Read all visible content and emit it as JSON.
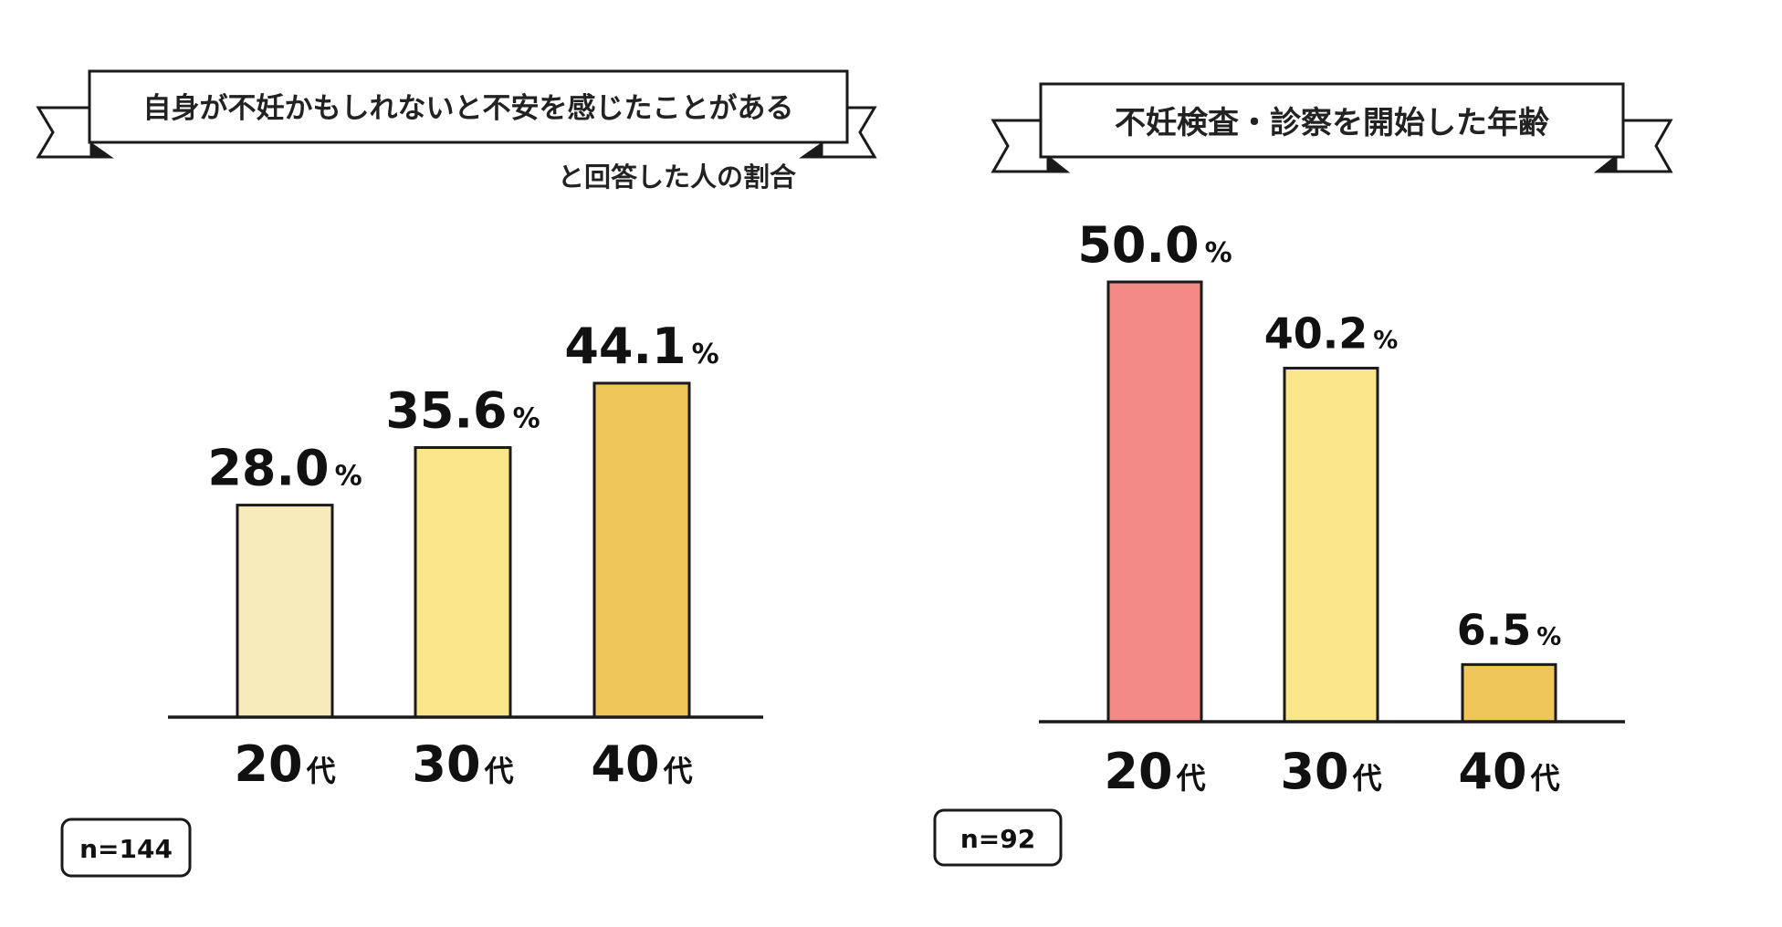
{
  "chart_data": [
    {
      "type": "bar",
      "title": "自身が不妊かもしれないと不安を感じたことがある",
      "subtitle": "と回答した人の割合",
      "categories": [
        "20",
        "30",
        "40"
      ],
      "category_suffix": "代",
      "values": [
        28.0,
        35.6,
        44.1
      ],
      "value_labels": [
        "28.0",
        "35.6",
        "44.1"
      ],
      "unit": "%",
      "colors": [
        "#F8EBBB",
        "#FAE68A",
        "#EEC65A"
      ],
      "sample_size": "n=144",
      "ylim": [
        0,
        50
      ],
      "grid": false
    },
    {
      "type": "bar",
      "title": "不妊検査・診察を開始した年齢",
      "subtitle": "",
      "categories": [
        "20",
        "30",
        "40"
      ],
      "category_suffix": "代",
      "values": [
        50.0,
        40.2,
        6.5
      ],
      "value_labels": [
        "50.0",
        "40.2",
        "6.5"
      ],
      "unit": "%",
      "colors": [
        "#F38A87",
        "#FAE68A",
        "#EEC65A"
      ],
      "sample_size": "n=92",
      "ylim": [
        0,
        50
      ],
      "grid": false
    }
  ]
}
